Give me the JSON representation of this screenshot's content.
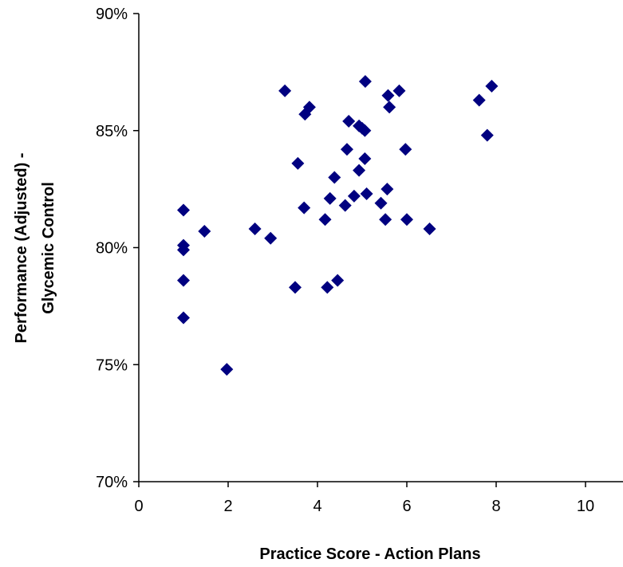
{
  "chart_data": {
    "type": "scatter",
    "title": "",
    "xlabel": "Practice Score - Action Plans",
    "ylabel_lines": [
      "Performance (Adjusted) -",
      "Glycemic Control"
    ],
    "xlim": [
      0,
      10
    ],
    "ylim": [
      0.7,
      0.9
    ],
    "x_ticks": [
      0,
      2,
      4,
      6,
      8,
      10
    ],
    "x_tick_labels": [
      "0",
      "2",
      "4",
      "6",
      "8",
      "10"
    ],
    "y_ticks": [
      0.7,
      0.75,
      0.8,
      0.85,
      0.9
    ],
    "y_tick_labels": [
      "70%",
      "75%",
      "80%",
      "85%",
      "90%"
    ],
    "grid": false,
    "legend": false,
    "marker": "diamond",
    "marker_color": "#000080",
    "series": [
      {
        "points": [
          [
            1.0,
            0.816
          ],
          [
            1.0,
            0.801
          ],
          [
            1.0,
            0.799
          ],
          [
            1.0,
            0.786
          ],
          [
            1.0,
            0.77
          ],
          [
            1.47,
            0.807
          ],
          [
            1.97,
            0.748
          ],
          [
            2.6,
            0.808
          ],
          [
            2.95,
            0.804
          ],
          [
            3.27,
            0.867
          ],
          [
            3.5,
            0.783
          ],
          [
            3.56,
            0.836
          ],
          [
            3.7,
            0.817
          ],
          [
            3.72,
            0.857
          ],
          [
            3.82,
            0.86
          ],
          [
            4.17,
            0.812
          ],
          [
            4.22,
            0.783
          ],
          [
            4.28,
            0.821
          ],
          [
            4.38,
            0.83
          ],
          [
            4.45,
            0.786
          ],
          [
            4.62,
            0.818
          ],
          [
            4.66,
            0.842
          ],
          [
            4.7,
            0.854
          ],
          [
            4.82,
            0.822
          ],
          [
            4.93,
            0.852
          ],
          [
            4.93,
            0.833
          ],
          [
            5.0,
            0.851
          ],
          [
            5.06,
            0.838
          ],
          [
            5.06,
            0.85
          ],
          [
            5.07,
            0.871
          ],
          [
            5.1,
            0.823
          ],
          [
            5.42,
            0.819
          ],
          [
            5.52,
            0.812
          ],
          [
            5.56,
            0.825
          ],
          [
            5.58,
            0.865
          ],
          [
            5.61,
            0.86
          ],
          [
            5.83,
            0.867
          ],
          [
            5.97,
            0.842
          ],
          [
            6.0,
            0.812
          ],
          [
            6.51,
            0.808
          ],
          [
            7.62,
            0.863
          ],
          [
            7.8,
            0.848
          ],
          [
            7.9,
            0.869
          ]
        ]
      }
    ]
  }
}
